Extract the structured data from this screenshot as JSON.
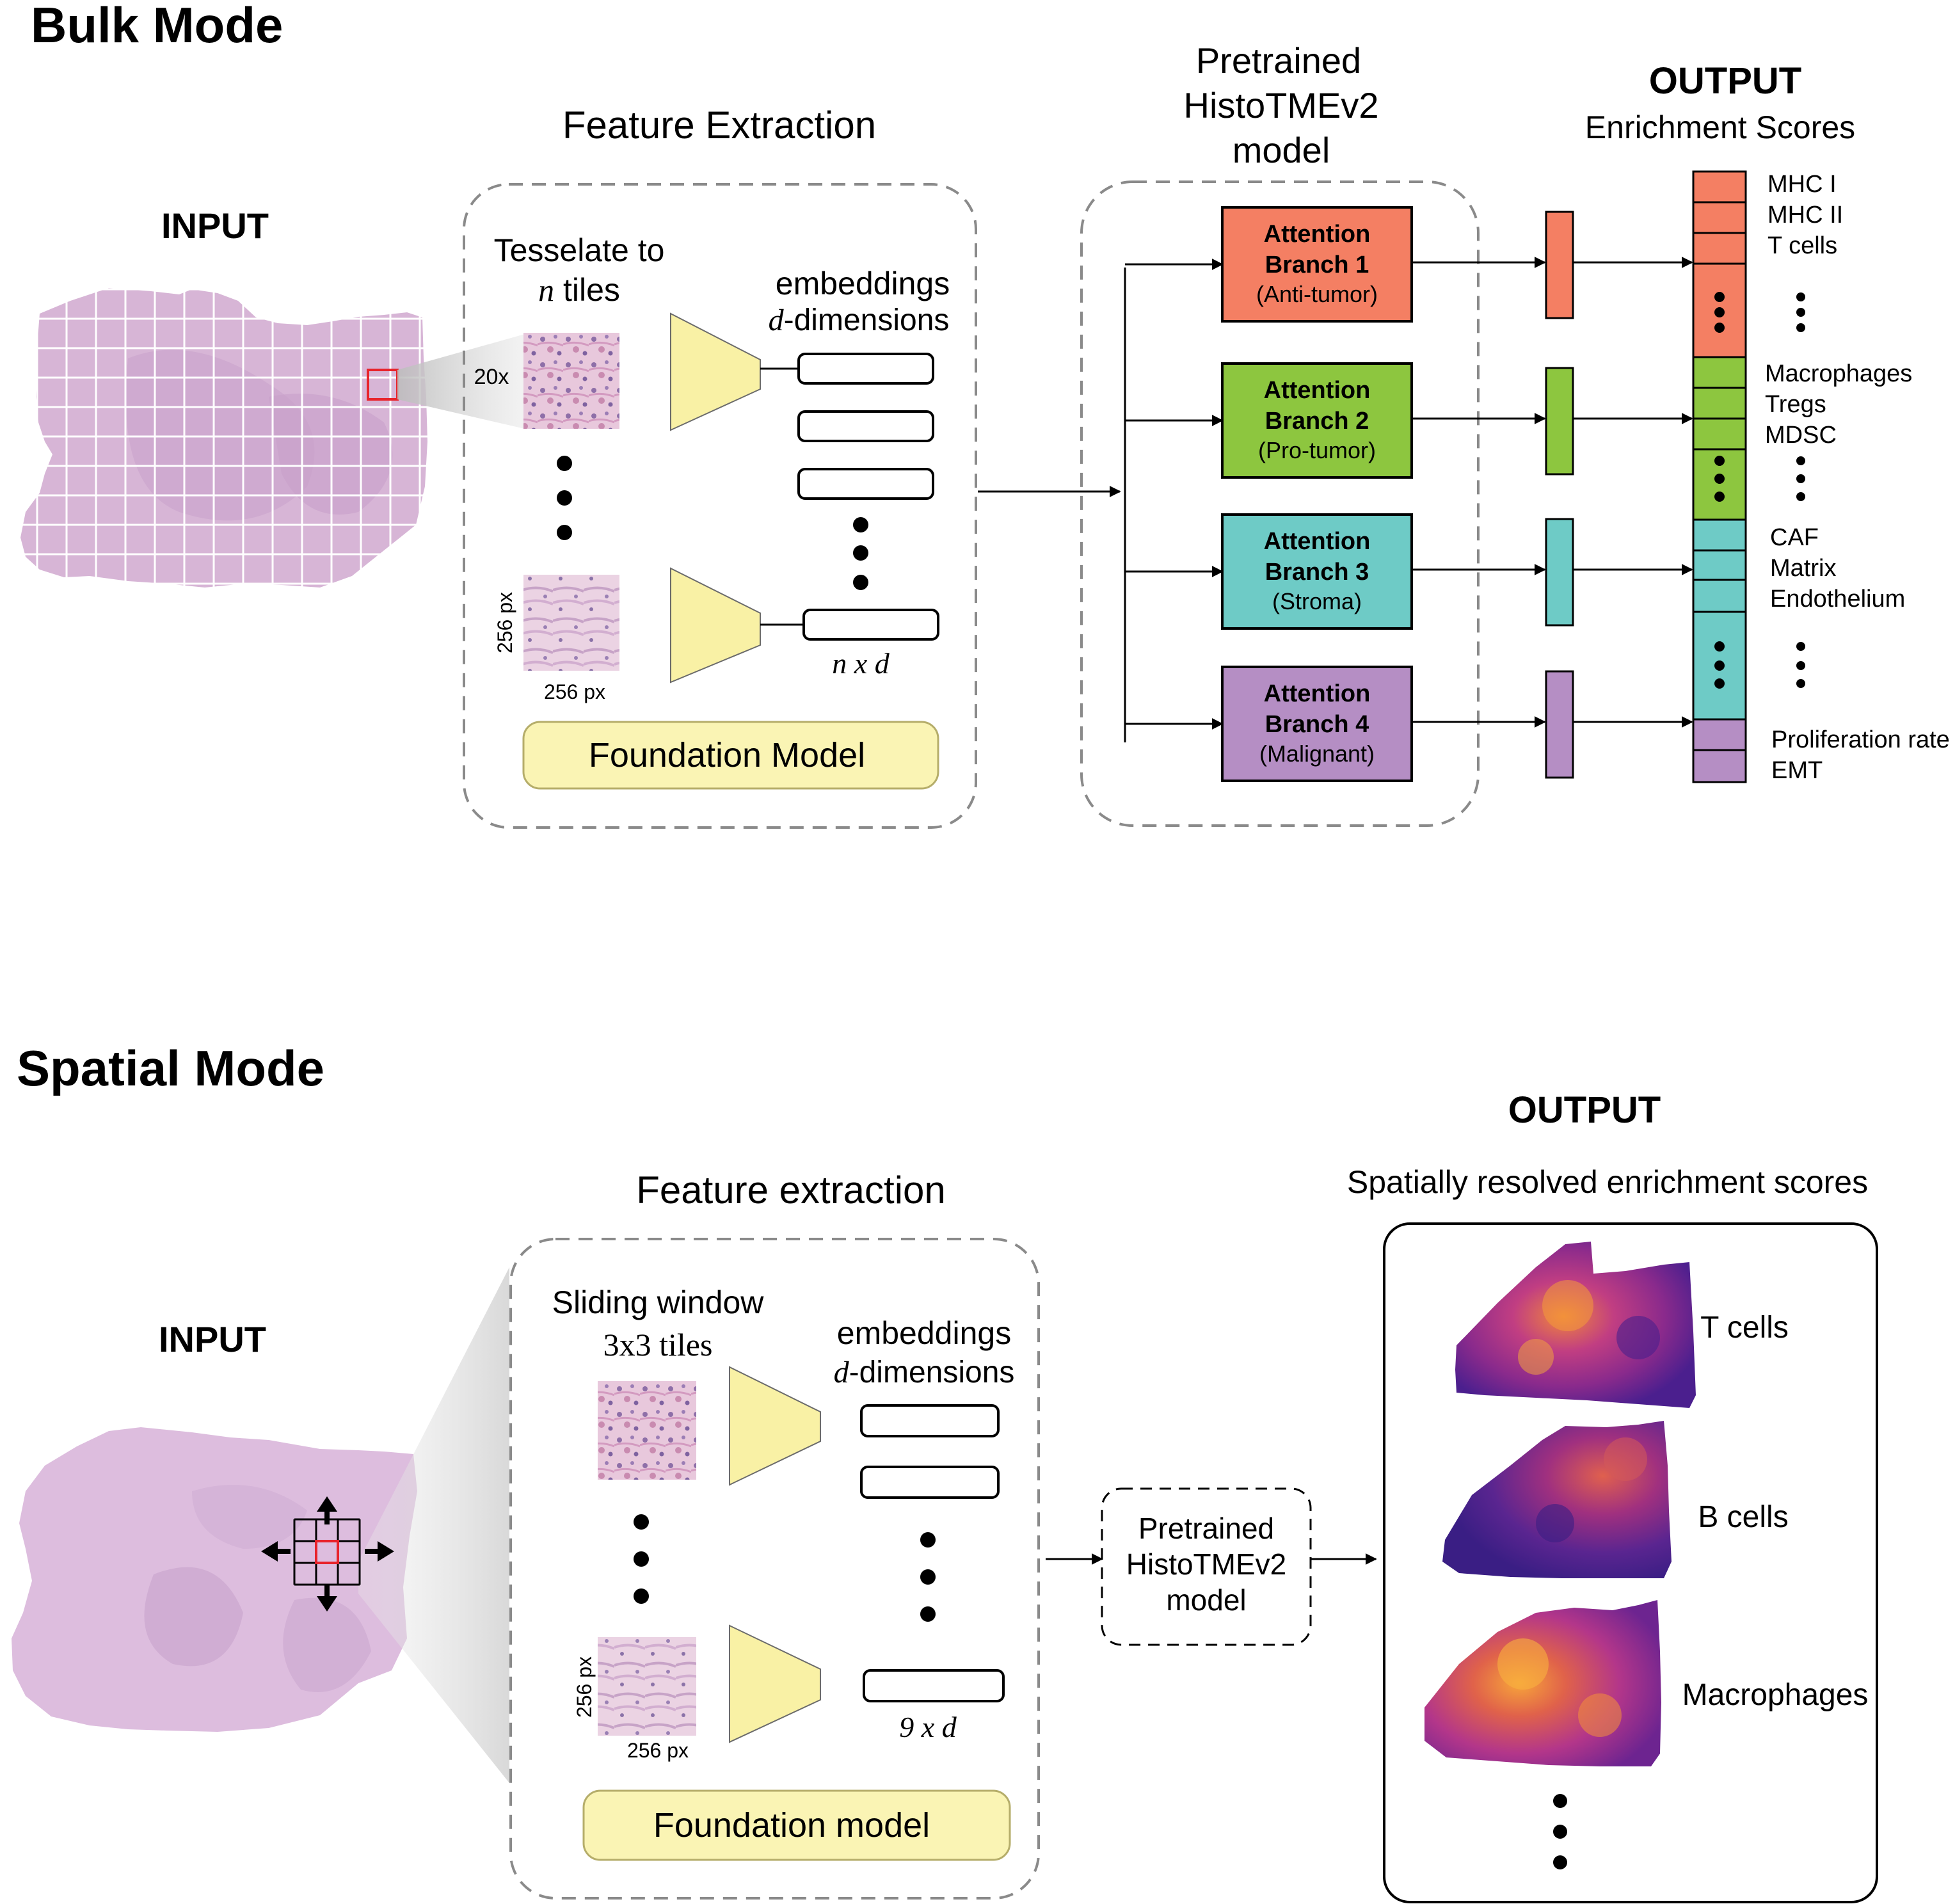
{
  "bulk": {
    "title": "Bulk Mode",
    "input_label": "INPUT",
    "feature_title": "Feature Extraction",
    "tesselate_line1": "Tesselate to",
    "tesselate_n": "n",
    "tesselate_line2_rest": " tiles",
    "magnification": "20x",
    "tile_height_label": "256 px",
    "tile_width_label": "256 px",
    "embeddings_line1": "embeddings",
    "embeddings_d": "d",
    "embeddings_line2_rest": "-dimensions",
    "matrix_label": "n x d",
    "foundation_label": "Foundation Model",
    "model_title_line1": "Pretrained",
    "model_title_line2": "HistoTMEv2",
    "model_title_line3": "model",
    "branches": [
      {
        "line1": "Attention",
        "line2": "Branch 1",
        "line3": "(Anti-tumor)",
        "color": "#F47F63"
      },
      {
        "line1": "Attention",
        "line2": "Branch 2",
        "line3": "(Pro-tumor)",
        "color": "#8DC63F"
      },
      {
        "line1": "Attention",
        "line2": "Branch 3",
        "line3": "(Stroma)",
        "color": "#6ECBC6"
      },
      {
        "line1": "Attention",
        "line2": "Branch 4",
        "line3": "(Malignant)",
        "color": "#B58EC4"
      }
    ],
    "output_title": "OUTPUT",
    "output_subtitle": "Enrichment Scores",
    "output_groups": [
      {
        "color": "#F47F63",
        "labels": [
          "MHC I",
          "MHC II",
          "T cells"
        ]
      },
      {
        "color": "#8DC63F",
        "labels": [
          "Macrophages",
          "Tregs",
          "MDSC"
        ]
      },
      {
        "color": "#6ECBC6",
        "labels": [
          "CAF",
          "Matrix",
          "Endothelium"
        ]
      },
      {
        "color": "#B58EC4",
        "labels": [
          "Proliferation rate",
          "EMT"
        ]
      }
    ]
  },
  "spatial": {
    "title": "Spatial Mode",
    "input_label": "INPUT",
    "feature_title": "Feature extraction",
    "sliding_line1": "Sliding window",
    "sliding_line2": "3x3 tiles",
    "embeddings_line1": "embeddings",
    "embeddings_d": "d",
    "embeddings_line2_rest": "-dimensions",
    "tile_height_label": "256 px",
    "tile_width_label": "256 px",
    "matrix_label": "9 x d",
    "foundation_label": "Foundation model",
    "model_line1": "Pretrained",
    "model_line2": "HistoTMEv2",
    "model_line3": "model",
    "output_title": "OUTPUT",
    "output_subtitle": "Spatially resolved enrichment scores",
    "maps": [
      "T cells",
      "B cells",
      "Macrophages"
    ]
  },
  "colors": {
    "foundation_fill": "#FAF4B4",
    "trapezoid_fill": "#F9F1A5",
    "tissue_fill": "#D9B7D9",
    "heatmap_dark": "#3B1F87",
    "heatmap_mid": "#B83289",
    "heatmap_bright": "#F8A830"
  }
}
